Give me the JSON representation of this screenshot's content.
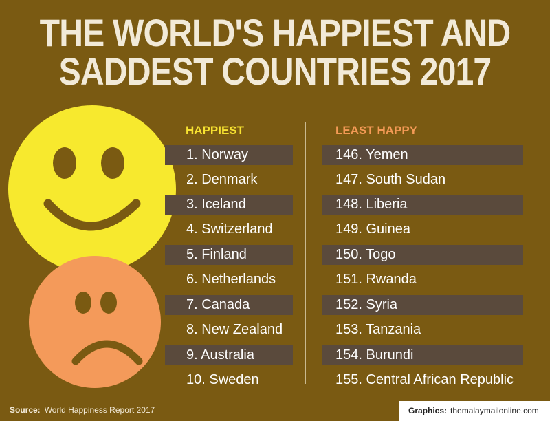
{
  "title": {
    "line1": "THE WORLD'S HAPPIEST AND",
    "line2": "SADDEST COUNTRIES 2017"
  },
  "happiest": {
    "heading": "HAPPIEST",
    "items": [
      "1. Norway",
      "2. Denmark",
      "3. Iceland",
      "4. Switzerland",
      "5. Finland",
      "6. Netherlands",
      "7. Canada",
      "8. New Zealand",
      "9. Australia",
      "10. Sweden"
    ]
  },
  "least_happy": {
    "heading": "LEAST HAPPY",
    "items": [
      "146. Yemen",
      "147. South Sudan",
      "148. Liberia",
      "149. Guinea",
      "150. Togo",
      "151. Rwanda",
      "152. Syria",
      "153. Tanzania",
      "154. Burundi",
      "155. Central African Republic"
    ]
  },
  "footer": {
    "source_label": "Source:",
    "source_value": "World Happiness Report 2017",
    "graphics_label": "Graphics:",
    "graphics_value": "themalaymailonline.com"
  },
  "icons": {
    "happy": "smiley-face-icon",
    "sad": "sad-face-icon"
  },
  "colors": {
    "background": "#7a5a12",
    "title": "#f2ead8",
    "happy_face": "#f7e92e",
    "sad_face": "#f49a5a",
    "face_features": "#7a5a12",
    "row_shade": "#5a4a3c",
    "happiest_heading": "#f7e231",
    "least_happy_heading": "#f49a56"
  }
}
